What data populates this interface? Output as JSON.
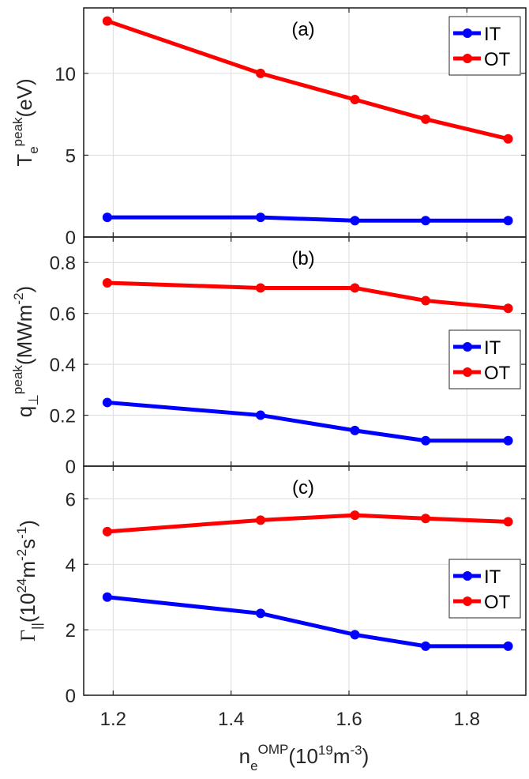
{
  "chart_data": [
    {
      "type": "line",
      "panel": "(a)",
      "x": [
        1.19,
        1.45,
        1.61,
        1.73,
        1.87
      ],
      "series": [
        {
          "name": "IT",
          "color": "#0000ff",
          "values": [
            1.2,
            1.2,
            1.0,
            1.0,
            1.0
          ]
        },
        {
          "name": "OT",
          "color": "#ff0000",
          "values": [
            13.2,
            10.0,
            8.4,
            7.2,
            6.0
          ]
        }
      ],
      "ylabel": "T_e^peak(eV)",
      "ylabel_parts": {
        "main": "T",
        "sub": "e",
        "sup": "peak",
        "unit": "(eV)"
      },
      "ylim": [
        0,
        14
      ],
      "yticks": [
        0,
        5,
        10
      ],
      "ytick_labels": [
        "0",
        "5",
        "10"
      ],
      "legend": "top-right",
      "grid": true
    },
    {
      "type": "line",
      "panel": "(b)",
      "x": [
        1.19,
        1.45,
        1.61,
        1.73,
        1.87
      ],
      "series": [
        {
          "name": "IT",
          "color": "#0000ff",
          "values": [
            0.25,
            0.2,
            0.14,
            0.1,
            0.1
          ]
        },
        {
          "name": "OT",
          "color": "#ff0000",
          "values": [
            0.72,
            0.7,
            0.7,
            0.65,
            0.62
          ]
        }
      ],
      "ylabel": "q_⊥^peak(MWm^-2)",
      "ylabel_parts": {
        "main": "q",
        "sub": "⊥",
        "sup": "peak",
        "unit_pre": "(MWm",
        "unit_sup": "-2",
        "unit_post": ")"
      },
      "ylim": [
        0,
        0.9
      ],
      "yticks": [
        0,
        0.2,
        0.4,
        0.6,
        0.8
      ],
      "ytick_labels": [
        "0",
        "0.2",
        "0.4",
        "0.6",
        "0.8"
      ],
      "legend": "right",
      "grid": true
    },
    {
      "type": "line",
      "panel": "(c)",
      "x": [
        1.19,
        1.45,
        1.61,
        1.73,
        1.87
      ],
      "series": [
        {
          "name": "IT",
          "color": "#0000ff",
          "values": [
            3.0,
            2.5,
            1.85,
            1.5,
            1.5
          ]
        },
        {
          "name": "OT",
          "color": "#ff0000",
          "values": [
            5.0,
            5.35,
            5.5,
            5.4,
            5.3
          ]
        }
      ],
      "ylabel": "Γ_||(10^24 m^-2 s^-1)",
      "ylabel_parts": {
        "main": "Γ",
        "sub": "||",
        "unit_pre": "(10",
        "sup1": "24",
        "mid1": "m",
        "sup2": "-2",
        "mid2": "s",
        "sup3": "-1",
        "unit_post": ")"
      },
      "ylim": [
        0,
        7
      ],
      "yticks": [
        0,
        2,
        4,
        6
      ],
      "ytick_labels": [
        "0",
        "2",
        "4",
        "6"
      ],
      "legend": "right",
      "grid": true
    }
  ],
  "shared_x": {
    "xlim": [
      1.15,
      1.9
    ],
    "xticks": [
      1.2,
      1.4,
      1.6,
      1.8
    ],
    "xtick_labels": [
      "1.2",
      "1.4",
      "1.6",
      "1.8"
    ],
    "xlabel": "n_e^OMP(10^19 m^-3)",
    "xlabel_parts": {
      "main": "n",
      "sub": "e",
      "sup": "OMP",
      "unit_pre": "(10",
      "unit_sup1": "19",
      "unit_mid": "m",
      "unit_sup2": "-3",
      "unit_post": ")"
    }
  }
}
